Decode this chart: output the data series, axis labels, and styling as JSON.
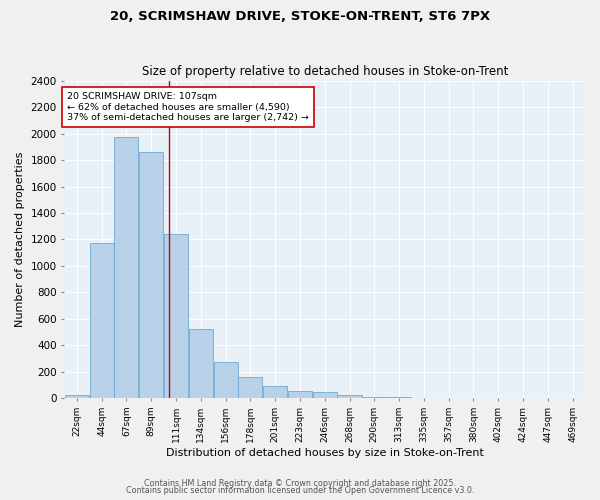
{
  "title1": "20, SCRIMSHAW DRIVE, STOKE-ON-TRENT, ST6 7PX",
  "title2": "Size of property relative to detached houses in Stoke-on-Trent",
  "xlabel": "Distribution of detached houses by size in Stoke-on-Trent",
  "ylabel": "Number of detached properties",
  "categories": [
    "22sqm",
    "44sqm",
    "67sqm",
    "89sqm",
    "111sqm",
    "134sqm",
    "156sqm",
    "178sqm",
    "201sqm",
    "223sqm",
    "246sqm",
    "268sqm",
    "290sqm",
    "313sqm",
    "335sqm",
    "357sqm",
    "380sqm",
    "402sqm",
    "424sqm",
    "447sqm",
    "469sqm"
  ],
  "values": [
    25,
    1170,
    1980,
    1860,
    1240,
    520,
    270,
    155,
    90,
    55,
    45,
    22,
    10,
    5,
    3,
    2,
    1,
    1,
    0,
    0,
    0
  ],
  "bar_color": "#b8d0e8",
  "bar_edge_color": "#6aaad4",
  "background_color": "#e8f0f8",
  "grid_color": "#ffffff",
  "annotation_box_text": "20 SCRIMSHAW DRIVE: 107sqm\n← 62% of detached houses are smaller (4,590)\n37% of semi-detached houses are larger (2,742) →",
  "annotation_box_color": "#ffffff",
  "annotation_box_edge_color": "#cc0000",
  "red_line_x": 3.7,
  "ylim": [
    0,
    2400
  ],
  "yticks": [
    0,
    200,
    400,
    600,
    800,
    1000,
    1200,
    1400,
    1600,
    1800,
    2000,
    2200,
    2400
  ],
  "footer1": "Contains HM Land Registry data © Crown copyright and database right 2025.",
  "footer2": "Contains public sector information licensed under the Open Government Licence v3.0."
}
